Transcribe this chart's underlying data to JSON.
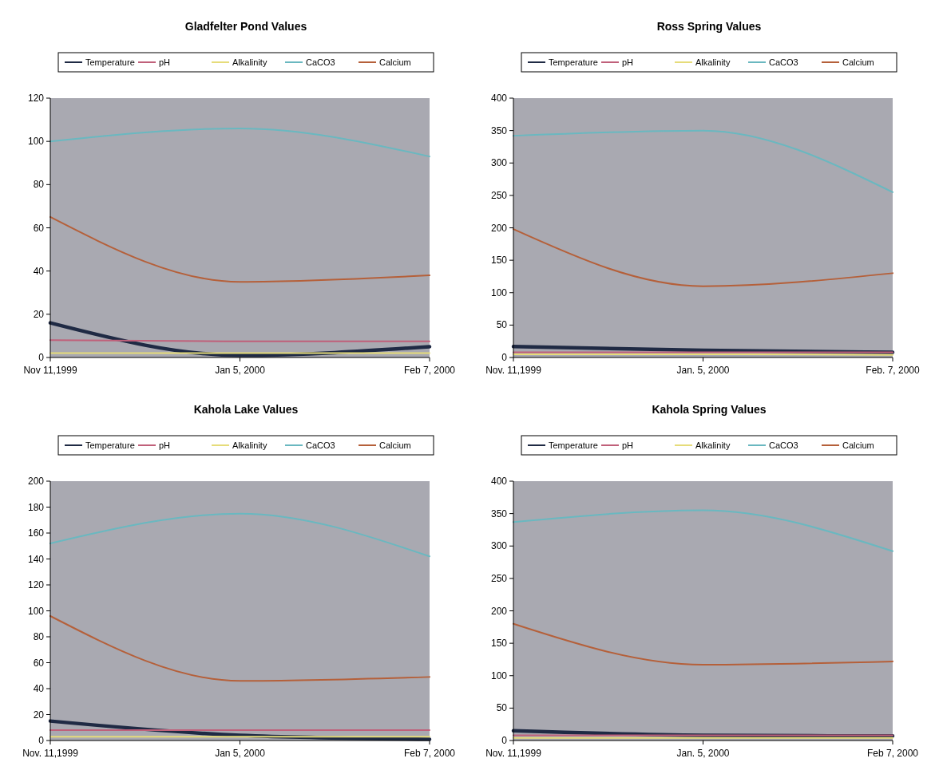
{
  "chart_data": [
    {
      "type": "line",
      "title": "Gladfelter Pond Values",
      "categories": [
        "Nov 11,1999",
        "Jan 5, 2000",
        "Feb 7, 2000"
      ],
      "ylim": [
        0,
        120
      ],
      "yticks": [
        0,
        20,
        40,
        60,
        80,
        100,
        120
      ],
      "legend": "top",
      "series": [
        {
          "name": "Temperature",
          "color": "#1f2a44",
          "values": [
            16,
            1,
            5
          ]
        },
        {
          "name": "pH",
          "color": "#c0607a",
          "values": [
            8,
            7.5,
            7.5
          ]
        },
        {
          "name": "Alkalinity",
          "color": "#e6dc7a",
          "values": [
            2,
            2,
            2
          ]
        },
        {
          "name": "CaCO3",
          "color": "#6ab8c0",
          "values": [
            100,
            106,
            93
          ]
        },
        {
          "name": "Calcium",
          "color": "#b5603a",
          "values": [
            65,
            35,
            38
          ]
        }
      ]
    },
    {
      "type": "line",
      "title": "Ross Spring Values",
      "categories": [
        "Nov. 11,1999",
        "Jan. 5, 2000",
        "Feb. 7, 2000"
      ],
      "ylim": [
        0,
        400
      ],
      "yticks": [
        0,
        50,
        100,
        150,
        200,
        250,
        300,
        350,
        400
      ],
      "legend": "top",
      "series": [
        {
          "name": "Temperature",
          "color": "#1f2a44",
          "values": [
            17,
            11,
            8
          ]
        },
        {
          "name": "pH",
          "color": "#c0607a",
          "values": [
            8,
            8,
            8
          ]
        },
        {
          "name": "Alkalinity",
          "color": "#e6dc7a",
          "values": [
            5,
            5,
            4
          ]
        },
        {
          "name": "CaCO3",
          "color": "#6ab8c0",
          "values": [
            342,
            350,
            255
          ]
        },
        {
          "name": "Calcium",
          "color": "#b5603a",
          "values": [
            198,
            110,
            130
          ]
        }
      ]
    },
    {
      "type": "line",
      "title": "Kahola Lake Values",
      "categories": [
        "Nov. 11,1999",
        "Jan 5, 2000",
        "Feb 7, 2000"
      ],
      "ylim": [
        0,
        200
      ],
      "yticks": [
        0,
        20,
        40,
        60,
        80,
        100,
        120,
        140,
        160,
        180,
        200
      ],
      "legend": "top",
      "series": [
        {
          "name": "Temperature",
          "color": "#1f2a44",
          "values": [
            15,
            4,
            1
          ]
        },
        {
          "name": "pH",
          "color": "#c0607a",
          "values": [
            8,
            8,
            8
          ]
        },
        {
          "name": "Alkalinity",
          "color": "#e6dc7a",
          "values": [
            3,
            3,
            3
          ]
        },
        {
          "name": "CaCO3",
          "color": "#6ab8c0",
          "values": [
            152,
            175,
            142
          ]
        },
        {
          "name": "Calcium",
          "color": "#b5603a",
          "values": [
            96,
            46,
            49
          ]
        }
      ]
    },
    {
      "type": "line",
      "title": "Kahola Spring Values",
      "categories": [
        "Nov. 11,1999",
        "Jan. 5, 2000",
        "Feb 7, 2000"
      ],
      "ylim": [
        0,
        400
      ],
      "yticks": [
        0,
        50,
        100,
        150,
        200,
        250,
        300,
        350,
        400
      ],
      "legend": "top",
      "series": [
        {
          "name": "Temperature",
          "color": "#1f2a44",
          "values": [
            15,
            8,
            7
          ]
        },
        {
          "name": "pH",
          "color": "#c0607a",
          "values": [
            8,
            8,
            8
          ]
        },
        {
          "name": "Alkalinity",
          "color": "#e6dc7a",
          "values": [
            4,
            4,
            4
          ]
        },
        {
          "name": "CaCO3",
          "color": "#6ab8c0",
          "values": [
            337,
            355,
            292
          ]
        },
        {
          "name": "Calcium",
          "color": "#b5603a",
          "values": [
            180,
            117,
            122
          ]
        }
      ]
    }
  ]
}
